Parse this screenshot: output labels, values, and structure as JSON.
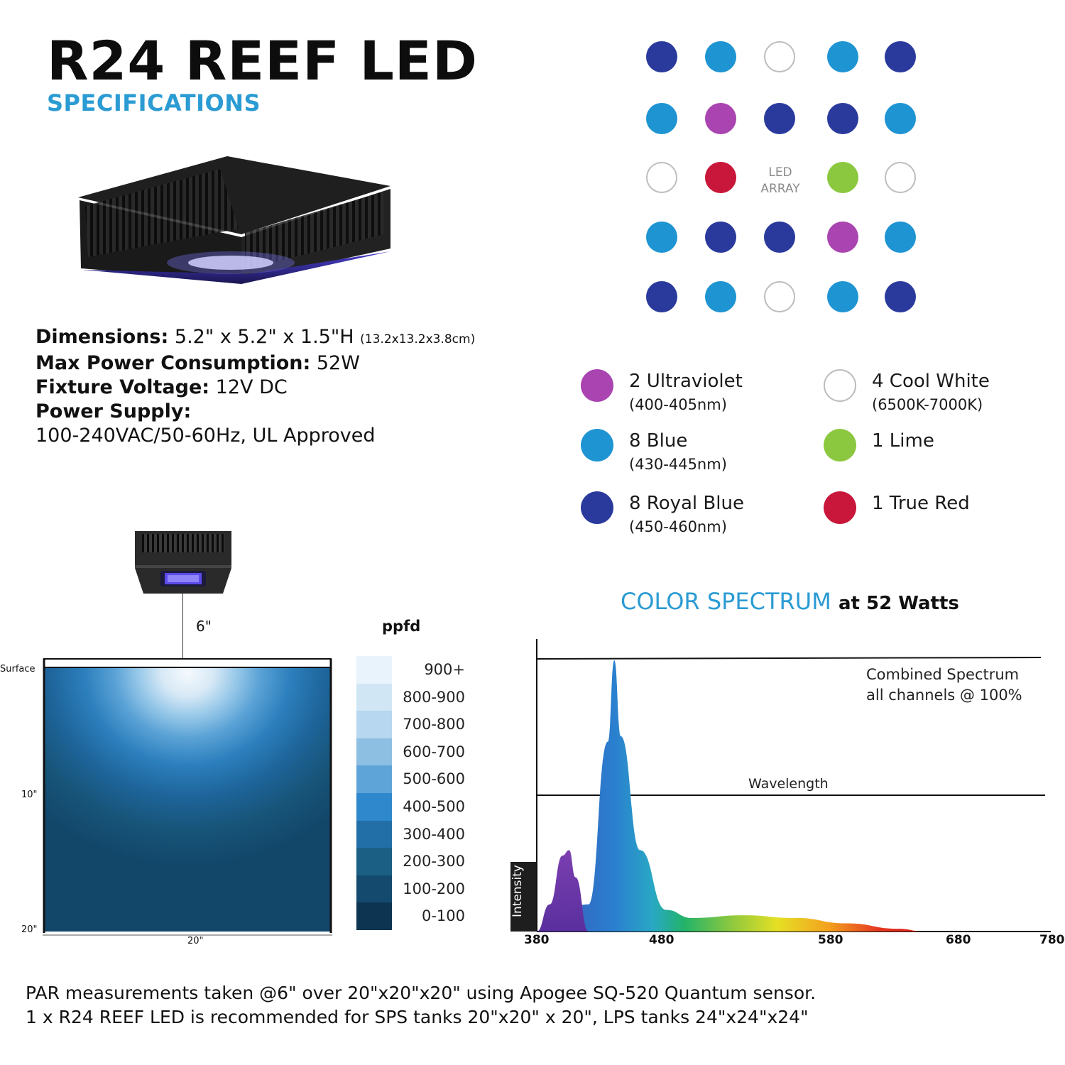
{
  "header": {
    "title": "R24 REEF LED",
    "subtitle": "SPECIFICATIONS"
  },
  "specs": {
    "dimensions_label": "Dimensions:",
    "dimensions_value": "5.2\" x 5.2\" x 1.5\"H",
    "dimensions_metric": "(13.2x13.2x3.8cm)",
    "power_label": "Max Power Consumption:",
    "power_value": "52W",
    "voltage_label": "Fixture Voltage:",
    "voltage_value": "12V DC",
    "supply_label": "Power Supply:",
    "supply_value": "100-240VAC/50-60Hz, UL Approved"
  },
  "led_array": {
    "label_line1": "LED",
    "label_line2": "ARRAY",
    "colors": {
      "royal_blue": "#2a3a9c",
      "blue": "#1e94d2",
      "white": "#ffffff",
      "violet": "#a944b0",
      "red": "#c8173a",
      "lime": "#8cc83f"
    },
    "grid": [
      [
        "royal_blue",
        "blue",
        "white",
        "blue",
        "royal_blue"
      ],
      [
        "blue",
        "violet",
        "royal_blue",
        "royal_blue",
        "blue"
      ],
      [
        "white",
        "red",
        "",
        "lime",
        "white"
      ],
      [
        "blue",
        "royal_blue",
        "royal_blue",
        "violet",
        "blue"
      ],
      [
        "royal_blue",
        "blue",
        "white",
        "blue",
        "royal_blue"
      ]
    ]
  },
  "legend": [
    {
      "name": "2 Ultraviolet",
      "range": "(400-405nm)",
      "color": "violet"
    },
    {
      "name": "8 Blue",
      "range": "(430-445nm)",
      "color": "blue"
    },
    {
      "name": "8 Royal Blue",
      "range": "(450-460nm)",
      "color": "royal_blue"
    },
    {
      "name": "4 Cool White",
      "range": "(6500K-7000K)",
      "color": "white"
    },
    {
      "name": "1 Lime",
      "range": "",
      "color": "lime"
    },
    {
      "name": "1 True Red",
      "range": "",
      "color": "red"
    }
  ],
  "par_map": {
    "height_label": "6\"",
    "surface_label": "Surface",
    "depth_10": "10\"",
    "depth_20": "20\"",
    "width_label": "20\"",
    "scale_title": "ppfd",
    "scale": [
      {
        "label": "900+",
        "color": "#e9f3fb"
      },
      {
        "label": "800-900",
        "color": "#d0e6f5"
      },
      {
        "label": "700-800",
        "color": "#b6d7ef"
      },
      {
        "label": "600-700",
        "color": "#8dbfe3"
      },
      {
        "label": "500-600",
        "color": "#5fa4d8"
      },
      {
        "label": "400-500",
        "color": "#2f88cb"
      },
      {
        "label": "300-400",
        "color": "#226fa7"
      },
      {
        "label": "200-300",
        "color": "#1b5f84"
      },
      {
        "label": "100-200",
        "color": "#134a6d"
      },
      {
        "label": "0-100",
        "color": "#0d3552"
      }
    ]
  },
  "spectrum": {
    "title_accent": "COLOR SPECTRUM",
    "title_rest": "at 52 Watts",
    "combined_line1": "Combined Spectrum",
    "combined_line2": "all channels @ 100%",
    "wavelength_label": "Wavelength",
    "intensity_label": "Intensity",
    "ticks": [
      "380",
      "480",
      "580",
      "680",
      "780"
    ]
  },
  "chart_data": {
    "type": "area",
    "title": "COLOR SPECTRUM at 52 Watts",
    "xlabel": "Wavelength",
    "ylabel": "Intensity",
    "xlim": [
      380,
      780
    ],
    "x_ticks": [
      380,
      480,
      580,
      680,
      780
    ],
    "series": [
      {
        "x": [
          380,
          390,
          400,
          405,
          410,
          420
        ],
        "values": [
          0,
          0.1,
          0.28,
          0.3,
          0.2,
          0
        ]
      },
      {
        "x": [
          380,
          420,
          435,
          440,
          445,
          460,
          480,
          500,
          540,
          580,
          620,
          660,
          680
        ],
        "values": [
          0,
          0.1,
          0.7,
          1.0,
          0.72,
          0.3,
          0.08,
          0.05,
          0.06,
          0.05,
          0.03,
          0.01,
          0
        ]
      }
    ]
  },
  "notes": {
    "line1": "PAR measurements taken @6\" over 20\"x20\"x20\" using Apogee SQ-520 Quantum sensor.",
    "line2": "1 x R24 REEF LED is recommended for SPS tanks 20\"x20\" x 20\", LPS tanks 24\"x24\"x24\""
  }
}
